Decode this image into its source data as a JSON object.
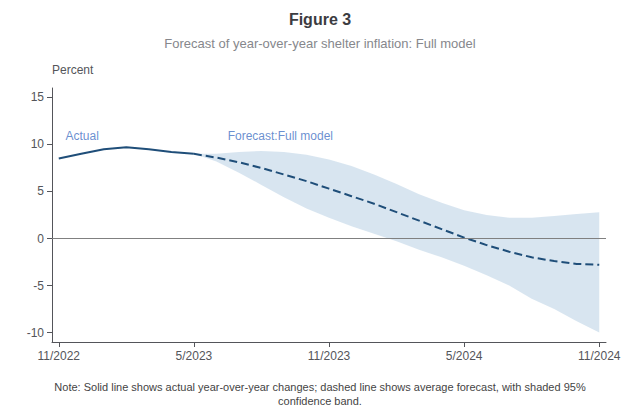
{
  "chart_data": {
    "type": "line",
    "title": "Figure 3",
    "subtitle": "Forecast of year-over-year shelter inflation: Full model",
    "ylabel": "Percent",
    "note": "Note: Solid line shows actual year-over-year changes; dashed line shows average forecast, with shaded 95%\nconfidence band.",
    "xlim": [
      -0.3,
      24.3
    ],
    "xticks": [
      {
        "value": 0,
        "label": "11/2022"
      },
      {
        "value": 6,
        "label": "5/2023"
      },
      {
        "value": 12,
        "label": "11/2023"
      },
      {
        "value": 18,
        "label": "5/2024"
      },
      {
        "value": 24,
        "label": "11/2024"
      }
    ],
    "ylim": [
      -11,
      16
    ],
    "yticks": [
      -10,
      -5,
      0,
      5,
      10,
      15
    ],
    "grid": false,
    "series": [
      {
        "type": "band",
        "x": [
          6,
          7,
          8,
          9,
          10,
          11,
          12,
          13,
          14,
          15,
          16,
          17,
          18,
          19,
          20,
          21,
          22,
          23,
          24
        ],
        "lower": [
          9.0,
          8.2,
          7.0,
          5.7,
          4.4,
          3.2,
          2.2,
          1.3,
          0.5,
          -0.3,
          -1.2,
          -2.0,
          -2.9,
          -3.9,
          -5.0,
          -6.4,
          -7.5,
          -8.8,
          -10.0
        ],
        "upper": [
          9.0,
          9.0,
          9.2,
          9.3,
          9.2,
          8.9,
          8.4,
          7.7,
          6.8,
          5.8,
          4.7,
          3.8,
          3.0,
          2.5,
          2.2,
          2.2,
          2.4,
          2.6,
          2.8
        ],
        "color": "#b8cfe4"
      },
      {
        "type": "hline",
        "values": [
          0
        ],
        "color": "#808080"
      },
      {
        "type": "line",
        "line_style": "solid",
        "color": "#1f4e79",
        "x": [
          0,
          1,
          2,
          3,
          4,
          5,
          6
        ],
        "values": [
          8.5,
          9.0,
          9.5,
          9.7,
          9.5,
          9.2,
          9.0
        ]
      },
      {
        "type": "line",
        "line_style": "dashed",
        "color": "#1f4e79",
        "x": [
          6,
          7,
          8,
          9,
          10,
          11,
          12,
          13,
          14,
          15,
          16,
          17,
          18,
          19,
          20,
          21,
          22,
          23,
          24
        ],
        "values": [
          9.0,
          8.6,
          8.1,
          7.5,
          6.8,
          6.1,
          5.3,
          4.5,
          3.7,
          2.8,
          1.9,
          1.0,
          0.1,
          -0.7,
          -1.4,
          -2.0,
          -2.4,
          -2.7,
          -2.8
        ]
      }
    ],
    "annotations": [
      {
        "text": "Actual",
        "x": 0.3,
        "y": 10.3,
        "color": "#4472c4"
      },
      {
        "text": "Forecast:Full model",
        "x": 7.5,
        "y": 10.3,
        "color": "#4472c4"
      }
    ]
  }
}
